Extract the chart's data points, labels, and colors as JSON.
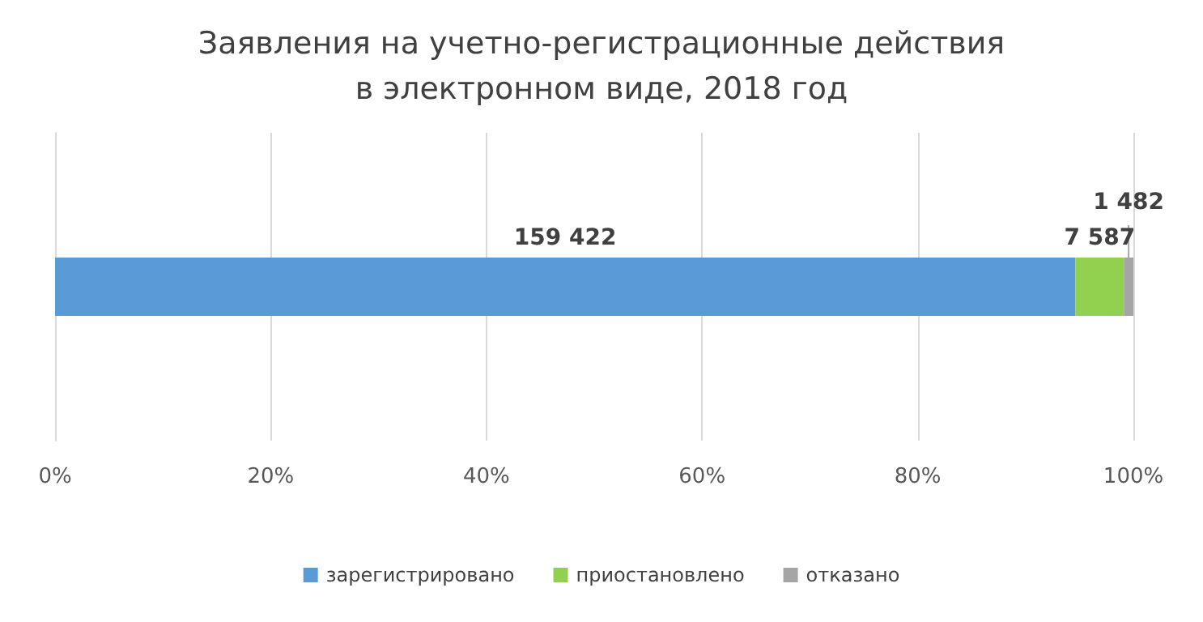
{
  "chart_data": {
    "type": "bar",
    "orientation": "horizontal",
    "stacked": true,
    "title": "Заявления на учетно-регистрационные действия\nв электронном виде, 2018 год",
    "categories": [
      null
    ],
    "series": [
      {
        "name": "зарегистрировано",
        "color": "#5b9bd5",
        "values": [
          94.62
        ]
      },
      {
        "name": "приостановлено",
        "color": "#92d050",
        "values": [
          4.5
        ]
      },
      {
        "name": "отказано",
        "color": "#a5a5a5",
        "values": [
          0.88
        ]
      }
    ],
    "xlim": [
      0,
      100
    ],
    "xticks": [
      {
        "value": 0,
        "label": "0%"
      },
      {
        "value": 20,
        "label": "20%"
      },
      {
        "value": 40,
        "label": "40%"
      },
      {
        "value": 60,
        "label": "60%"
      },
      {
        "value": 80,
        "label": "80%"
      },
      {
        "value": 100,
        "label": "100%"
      }
    ],
    "annotations": [
      "159 422",
      "7 587",
      "1 482"
    ],
    "grid": "x",
    "legend": "bottom"
  }
}
